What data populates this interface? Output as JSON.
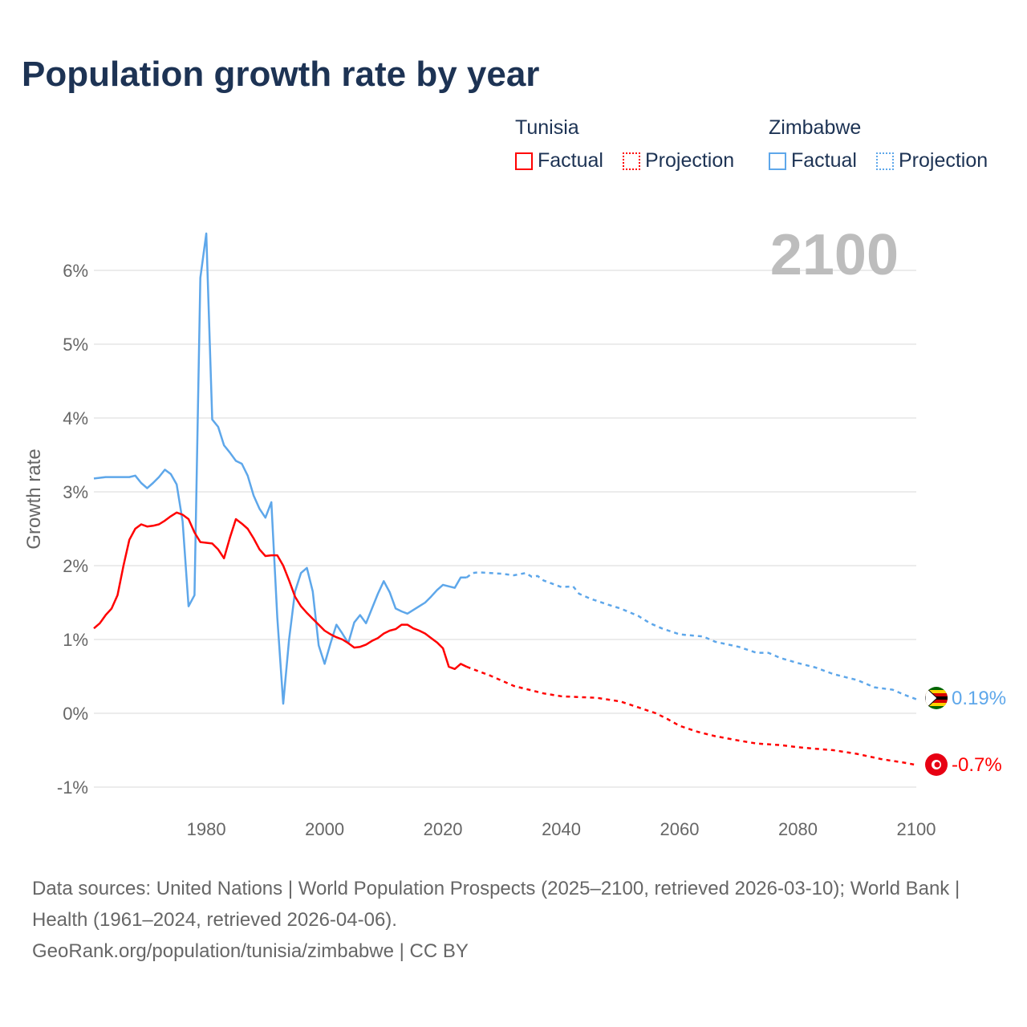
{
  "title": "Population growth rate by year",
  "legend": {
    "groups": [
      {
        "name": "Tunisia",
        "factual": "Factual",
        "projection": "Projection",
        "color": "#ff0000"
      },
      {
        "name": "Zimbabwe",
        "factual": "Factual",
        "projection": "Projection",
        "color": "#5ea7ea"
      }
    ]
  },
  "year_display": "2100",
  "end_labels": {
    "zimbabwe": "0.19%",
    "tunisia": "-0.7%"
  },
  "footer": {
    "sources": "Data sources: United Nations | World Population Prospects (2025–2100, retrieved 2026-03-10); World Bank | Health (1961–2024, retrieved 2026-04-06).",
    "link": "GeoRank.org/population/tunisia/zimbabwe | CC BY"
  },
  "chart_data": {
    "type": "line",
    "title": "Population growth rate by year",
    "xlabel": "",
    "ylabel": "Growth rate",
    "xlim": [
      1961,
      2100
    ],
    "ylim": [
      -1.3,
      6.7
    ],
    "yticks": [
      -1,
      0,
      1,
      2,
      3,
      4,
      5,
      6
    ],
    "ytick_labels": [
      "-1%",
      "0%",
      "1%",
      "2%",
      "3%",
      "4%",
      "5%",
      "6%"
    ],
    "xticks": [
      1980,
      2000,
      2020,
      2040,
      2060,
      2080,
      2100
    ],
    "xtick_labels": [
      "1980",
      "2000",
      "2020",
      "2040",
      "2060",
      "2080",
      "2100"
    ],
    "grid": true,
    "legend_placement": "top-right",
    "series": [
      {
        "name": "Zimbabwe Factual",
        "color": "#5ea7ea",
        "dashed": false,
        "x": [
          1961,
          1962,
          1963,
          1964,
          1965,
          1966,
          1967,
          1968,
          1969,
          1970,
          1971,
          1972,
          1973,
          1974,
          1975,
          1976,
          1977,
          1978,
          1979,
          1980,
          1981,
          1982,
          1983,
          1984,
          1985,
          1986,
          1987,
          1988,
          1989,
          1990,
          1991,
          1992,
          1993,
          1994,
          1995,
          1996,
          1997,
          1998,
          1999,
          2000,
          2001,
          2002,
          2003,
          2004,
          2005,
          2006,
          2007,
          2008,
          2009,
          2010,
          2011,
          2012,
          2013,
          2014,
          2015,
          2016,
          2017,
          2018,
          2019,
          2020,
          2021,
          2022,
          2023,
          2024
        ],
        "y": [
          3.18,
          3.19,
          3.2,
          3.2,
          3.2,
          3.2,
          3.2,
          3.22,
          3.12,
          3.05,
          3.12,
          3.2,
          3.3,
          3.24,
          3.1,
          2.6,
          1.45,
          1.6,
          5.9,
          6.5,
          3.98,
          3.88,
          3.63,
          3.53,
          3.42,
          3.38,
          3.22,
          2.95,
          2.77,
          2.65,
          2.86,
          1.3,
          0.13,
          1.0,
          1.65,
          1.9,
          1.97,
          1.65,
          0.92,
          0.67,
          0.95,
          1.2,
          1.08,
          0.95,
          1.23,
          1.33,
          1.22,
          1.42,
          1.62,
          1.79,
          1.64,
          1.42,
          1.38,
          1.35,
          1.4,
          1.45,
          1.5,
          1.58,
          1.67,
          1.74,
          1.72,
          1.7,
          1.84,
          1.84
        ]
      },
      {
        "name": "Zimbabwe Projection",
        "color": "#5ea7ea",
        "dashed": true,
        "x": [
          2024,
          2025,
          2026,
          2030,
          2032,
          2034,
          2035,
          2036,
          2037,
          2040,
          2042,
          2043,
          2045,
          2048,
          2050,
          2053,
          2055,
          2057,
          2060,
          2064,
          2066,
          2070,
          2073,
          2075,
          2077,
          2080,
          2083,
          2086,
          2090,
          2093,
          2096,
          2098,
          2100
        ],
        "y": [
          1.84,
          1.9,
          1.91,
          1.89,
          1.87,
          1.9,
          1.85,
          1.86,
          1.8,
          1.71,
          1.72,
          1.62,
          1.55,
          1.47,
          1.42,
          1.32,
          1.22,
          1.15,
          1.07,
          1.04,
          0.97,
          0.9,
          0.82,
          0.82,
          0.75,
          0.68,
          0.62,
          0.53,
          0.45,
          0.35,
          0.32,
          0.25,
          0.19
        ]
      },
      {
        "name": "Tunisia Factual",
        "color": "#ff0000",
        "dashed": false,
        "x": [
          1961,
          1962,
          1963,
          1964,
          1965,
          1966,
          1967,
          1968,
          1969,
          1970,
          1971,
          1972,
          1973,
          1974,
          1975,
          1976,
          1977,
          1978,
          1979,
          1980,
          1981,
          1982,
          1983,
          1984,
          1985,
          1986,
          1987,
          1988,
          1989,
          1990,
          1991,
          1992,
          1993,
          1994,
          1995,
          1996,
          1997,
          1998,
          1999,
          2000,
          2001,
          2002,
          2003,
          2004,
          2005,
          2006,
          2007,
          2008,
          2009,
          2010,
          2011,
          2012,
          2013,
          2014,
          2015,
          2016,
          2017,
          2018,
          2019,
          2020,
          2021,
          2022,
          2023,
          2024
        ],
        "y": [
          1.15,
          1.22,
          1.33,
          1.42,
          1.6,
          2.0,
          2.35,
          2.5,
          2.56,
          2.53,
          2.54,
          2.56,
          2.61,
          2.67,
          2.72,
          2.69,
          2.63,
          2.45,
          2.32,
          2.31,
          2.3,
          2.22,
          2.1,
          2.38,
          2.63,
          2.57,
          2.5,
          2.37,
          2.22,
          2.13,
          2.14,
          2.14,
          2.0,
          1.8,
          1.58,
          1.45,
          1.36,
          1.28,
          1.2,
          1.12,
          1.07,
          1.03,
          1.0,
          0.95,
          0.89,
          0.9,
          0.93,
          0.98,
          1.02,
          1.08,
          1.12,
          1.14,
          1.2,
          1.2,
          1.15,
          1.12,
          1.08,
          1.02,
          0.96,
          0.88,
          0.63,
          0.6,
          0.67,
          0.63
        ]
      },
      {
        "name": "Tunisia Projection",
        "color": "#ff0000",
        "dashed": true,
        "x": [
          2024,
          2025,
          2028,
          2030,
          2032,
          2035,
          2037,
          2040,
          2043,
          2046,
          2050,
          2053,
          2056,
          2058,
          2060,
          2063,
          2066,
          2070,
          2073,
          2077,
          2080,
          2083,
          2086,
          2090,
          2094,
          2098,
          2100
        ],
        "y": [
          0.63,
          0.6,
          0.51,
          0.44,
          0.37,
          0.31,
          0.27,
          0.23,
          0.22,
          0.21,
          0.16,
          0.08,
          0.0,
          -0.08,
          -0.17,
          -0.25,
          -0.31,
          -0.37,
          -0.41,
          -0.43,
          -0.46,
          -0.48,
          -0.5,
          -0.55,
          -0.62,
          -0.67,
          -0.7
        ]
      }
    ]
  }
}
